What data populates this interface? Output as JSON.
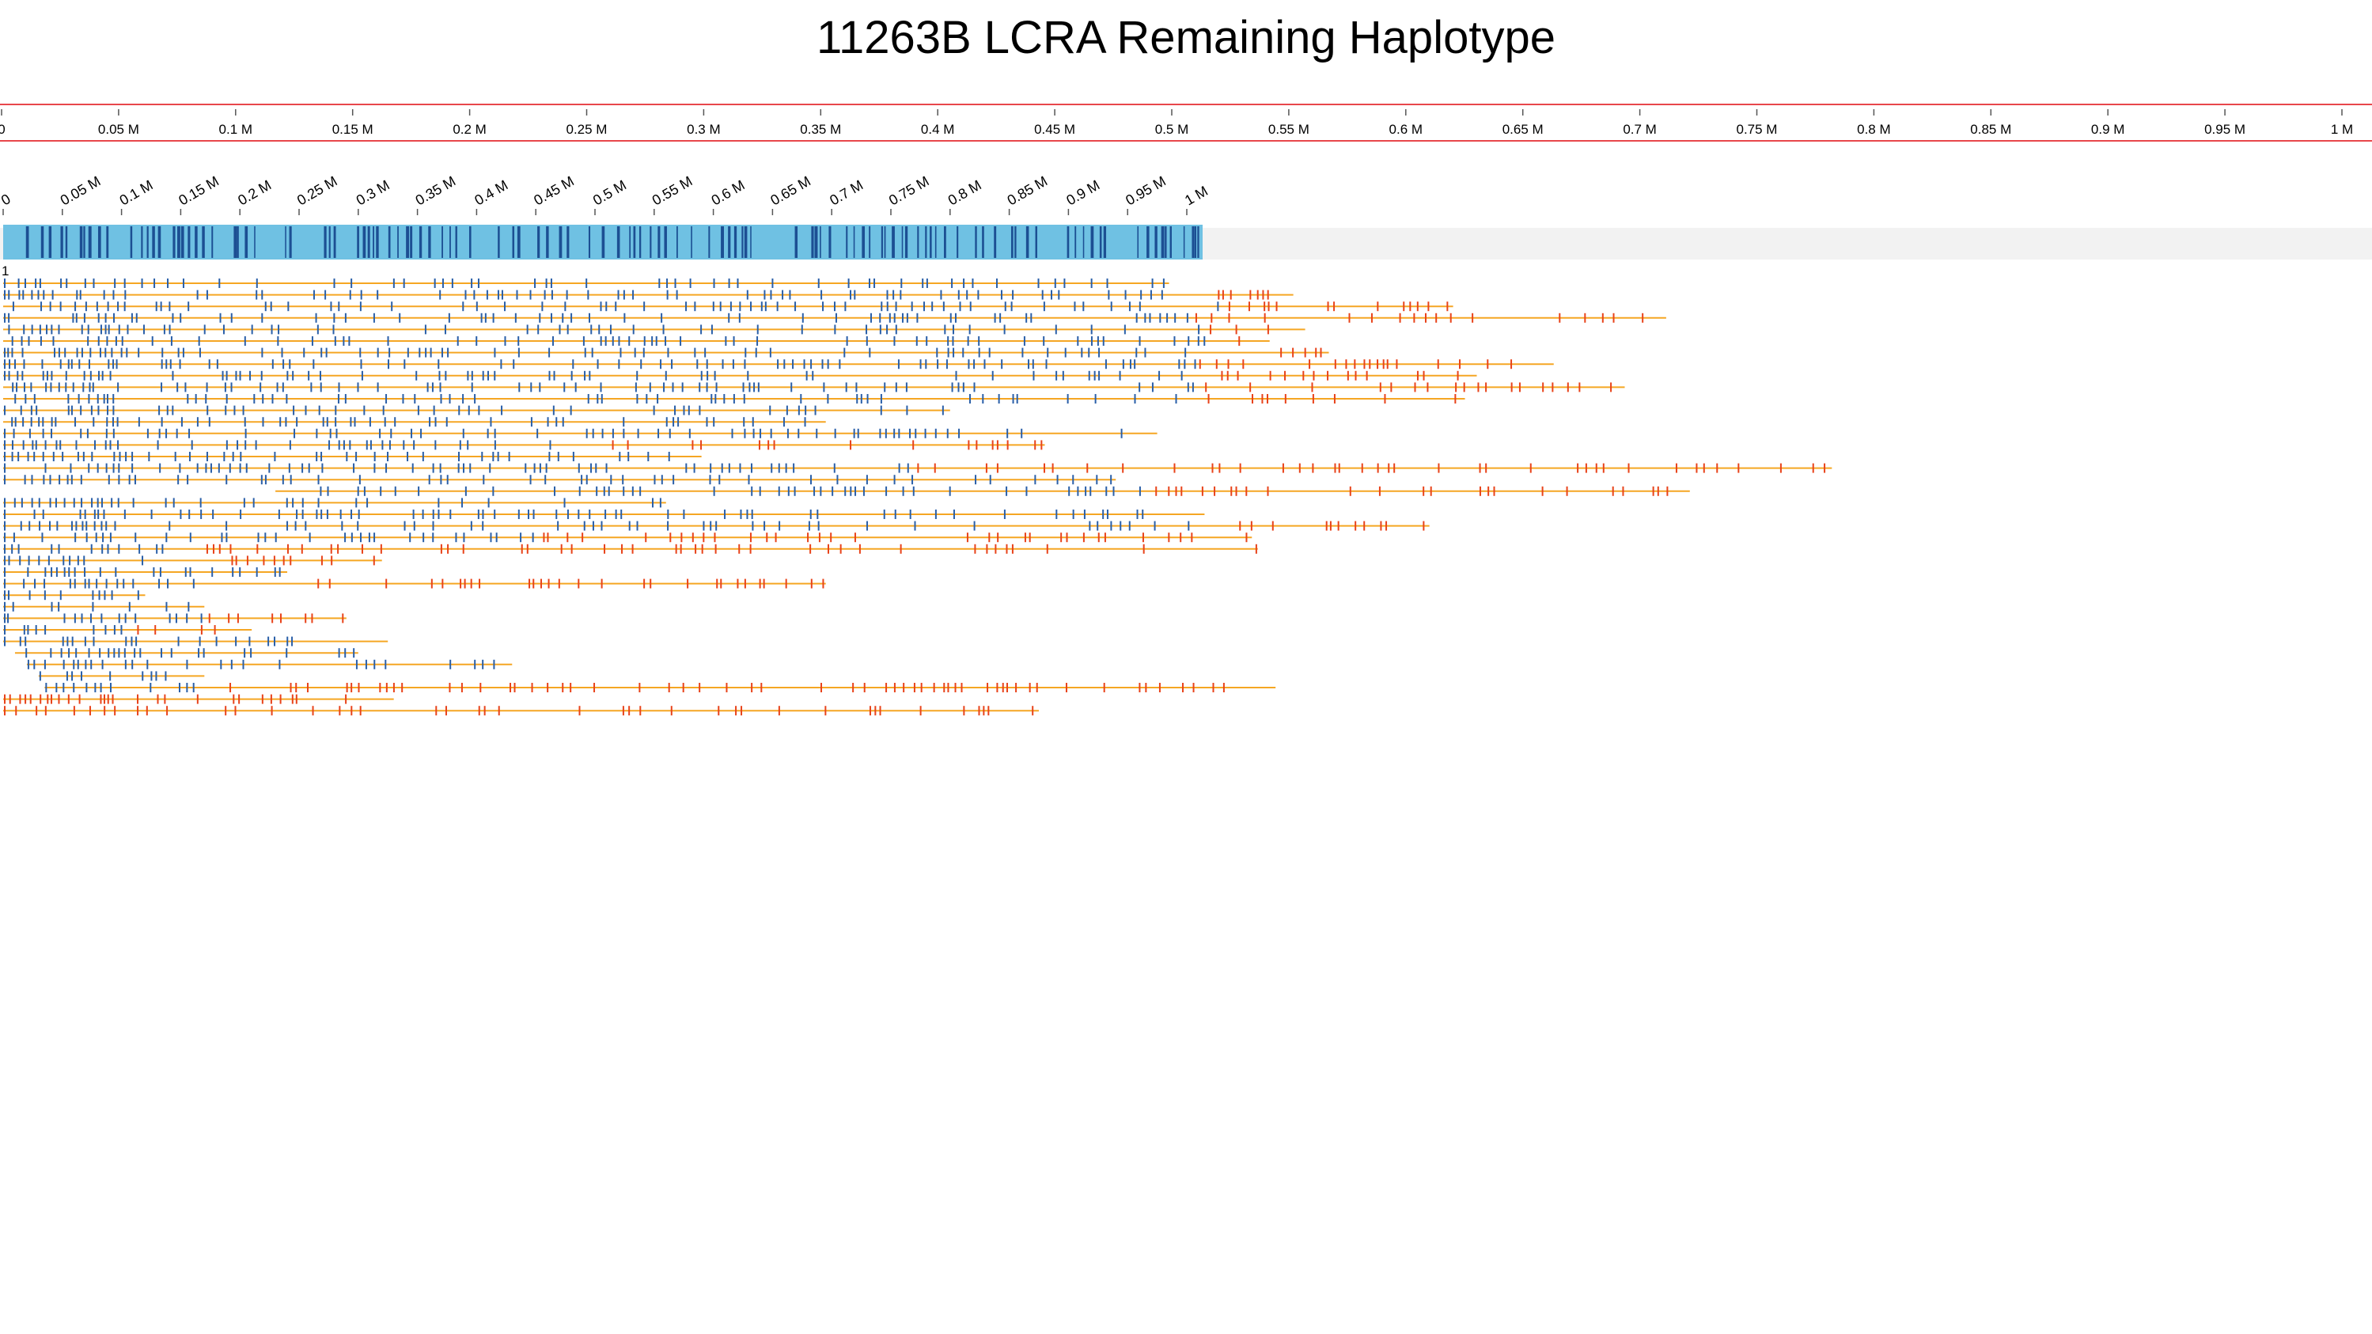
{
  "title": "11263B LCRA Remaining Haplotype",
  "colors": {
    "ruler_border": "#e8474b",
    "read_line": "#f5a623",
    "match_mark": "#2a5fa8",
    "mismatch_mark": "#e8431a",
    "haplotype_fill": "#6fc1e3",
    "haplotype_mark": "#1c4f93",
    "track_bg": "#f2f2f2"
  },
  "chart_data": {
    "type": "genome-track",
    "x_unit": "bp",
    "overview_axis": {
      "range": [
        0,
        1000000
      ],
      "ticks": [
        0,
        50000,
        100000,
        150000,
        200000,
        250000,
        300000,
        350000,
        400000,
        450000,
        500000,
        550000,
        600000,
        650000,
        700000,
        750000,
        800000,
        850000,
        900000,
        950000,
        1000000
      ],
      "tick_labels": [
        "0",
        "0.05 M",
        "0.1 M",
        "0.15 M",
        "0.2 M",
        "0.25 M",
        "0.3 M",
        "0.35 M",
        "0.4 M",
        "0.45 M",
        "0.5 M",
        "0.55 M",
        "0.6 M",
        "0.65 M",
        "0.7 M",
        "0.75 M",
        "0.8 M",
        "0.85 M",
        "0.9 M",
        "0.95 M",
        "1 M"
      ]
    },
    "detail_axis": {
      "range": [
        0,
        1000000
      ],
      "ticks": [
        0,
        50000,
        100000,
        150000,
        200000,
        250000,
        300000,
        350000,
        400000,
        450000,
        500000,
        550000,
        600000,
        650000,
        700000,
        750000,
        800000,
        850000,
        900000,
        950000,
        1000000
      ],
      "tick_labels": [
        "0",
        "0.05 M",
        "0.1 M",
        "0.15 M",
        "0.2 M",
        "0.25 M",
        "0.3 M",
        "0.35 M",
        "0.4 M",
        "0.45 M",
        "0.5 M",
        "0.55 M",
        "0.6 M",
        "0.65 M",
        "0.7 M",
        "0.75 M",
        "0.8 M",
        "0.85 M",
        "0.9 M",
        "0.95 M",
        "1 M"
      ],
      "tick_label_rotation_deg": -30
    },
    "haplotype": {
      "start": 0,
      "end": 1000000,
      "track_label": "1"
    },
    "reads": [
      {
        "start": 0,
        "end": 985000,
        "mismatch_from": null
      },
      {
        "start": 0,
        "end": 1090000,
        "mismatch_from": 1005000
      },
      {
        "start": 0,
        "end": 1225000,
        "mismatch_from": 1030000
      },
      {
        "start": 0,
        "end": 1405000,
        "mismatch_from": 1005000
      },
      {
        "start": 0,
        "end": 1100000,
        "mismatch_from": 1010000
      },
      {
        "start": 0,
        "end": 1070000,
        "mismatch_from": 1015000
      },
      {
        "start": 0,
        "end": 1120000,
        "mismatch_from": 1005000
      },
      {
        "start": 0,
        "end": 1310000,
        "mismatch_from": 1010000
      },
      {
        "start": 0,
        "end": 1245000,
        "mismatch_from": 1020000
      },
      {
        "start": 0,
        "end": 1370000,
        "mismatch_from": 1015000
      },
      {
        "start": 0,
        "end": 1235000,
        "mismatch_from": 1000000
      },
      {
        "start": 0,
        "end": 800000,
        "mismatch_from": null
      },
      {
        "start": 0,
        "end": 695000,
        "mismatch_from": null
      },
      {
        "start": 0,
        "end": 975000,
        "mismatch_from": null
      },
      {
        "start": 0,
        "end": 880000,
        "mismatch_from": 470000
      },
      {
        "start": 0,
        "end": 590000,
        "mismatch_from": null
      },
      {
        "start": 0,
        "end": 1545000,
        "mismatch_from": 770000
      },
      {
        "start": 0,
        "end": 940000,
        "mismatch_from": null
      },
      {
        "start": 230000,
        "end": 1425000,
        "mismatch_from": 960000
      },
      {
        "start": 0,
        "end": 560000,
        "mismatch_from": null
      },
      {
        "start": 0,
        "end": 1015000,
        "mismatch_from": null
      },
      {
        "start": 0,
        "end": 1205000,
        "mismatch_from": 1010000
      },
      {
        "start": 0,
        "end": 1055000,
        "mismatch_from": 450000
      },
      {
        "start": 0,
        "end": 1060000,
        "mismatch_from": 140000
      },
      {
        "start": 0,
        "end": 320000,
        "mismatch_from": 150000
      },
      {
        "start": 0,
        "end": 240000,
        "mismatch_from": null
      },
      {
        "start": 0,
        "end": 695000,
        "mismatch_from": 245000
      },
      {
        "start": 0,
        "end": 120000,
        "mismatch_from": null
      },
      {
        "start": 0,
        "end": 170000,
        "mismatch_from": null
      },
      {
        "start": 0,
        "end": 290000,
        "mismatch_from": 170000
      },
      {
        "start": 0,
        "end": 210000,
        "mismatch_from": 105000
      },
      {
        "start": 0,
        "end": 325000,
        "mismatch_from": null
      },
      {
        "start": 10000,
        "end": 300000,
        "mismatch_from": null
      },
      {
        "start": 20000,
        "end": 430000,
        "mismatch_from": null
      },
      {
        "start": 30000,
        "end": 170000,
        "mismatch_from": null
      },
      {
        "start": 35000,
        "end": 1075000,
        "mismatch_from": 190000
      },
      {
        "start": 0,
        "end": 330000,
        "mismatch_from": 0
      },
      {
        "start": 0,
        "end": 875000,
        "mismatch_from": 0
      }
    ]
  }
}
